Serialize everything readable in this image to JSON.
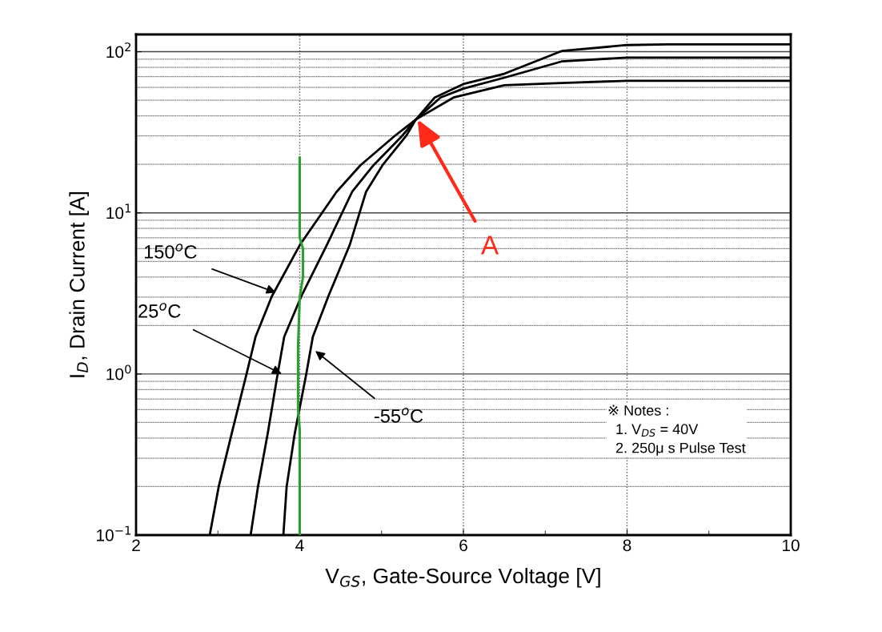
{
  "chart_data": {
    "type": "line",
    "xlabel": "V$_{GS}$, Gate-Source Voltage [V]",
    "ylabel": "I$_{D}$, Drain Current [A]",
    "log": "y",
    "grid": true,
    "legend": false,
    "marker": "none",
    "line_style": "solid",
    "xlim": [
      2,
      10
    ],
    "xticks": [
      2,
      4,
      6,
      8,
      10
    ],
    "ylim": [
      0.1,
      128
    ],
    "yticks": [
      {
        "value": 0.1,
        "label": "10$^{−1}$"
      },
      {
        "value": 1,
        "label": "10$^{0}$"
      },
      {
        "value": 10,
        "label": "10$^{1}$"
      },
      {
        "value": 100,
        "label": "10$^{2}$"
      }
    ],
    "series": [
      {
        "color": "#000000",
        "x": [
          2.9,
          3.01,
          3.17,
          3.35,
          3.46,
          3.66,
          4.0,
          4.45,
          4.74,
          5.16,
          5.42,
          5.88,
          6.5,
          7.2,
          8.0,
          10.0
        ],
        "values": [
          0.1,
          0.2,
          0.43,
          1.0,
          1.7,
          3.04,
          6.3,
          13.5,
          19.7,
          30,
          38,
          52,
          62,
          64,
          66,
          66
        ]
      },
      {
        "color": "#000000",
        "x": [
          3.4,
          3.49,
          3.61,
          3.73,
          3.81,
          4.02,
          4.33,
          4.64,
          4.9,
          5.25,
          5.42,
          5.72,
          6.0,
          6.5,
          7.2,
          8.0,
          10.0
        ],
        "values": [
          0.1,
          0.2,
          0.43,
          1.0,
          1.7,
          3.04,
          6.3,
          13.5,
          19.7,
          30,
          38,
          52,
          59,
          69,
          87,
          92,
          92
        ]
      },
      {
        "color": "#000000",
        "x": [
          3.8,
          3.84,
          3.94,
          4.08,
          4.16,
          4.35,
          4.61,
          4.81,
          5.01,
          5.3,
          5.42,
          5.65,
          6.0,
          6.5,
          7.2,
          8.0,
          8.5,
          10.0
        ],
        "values": [
          0.1,
          0.2,
          0.43,
          1.0,
          1.7,
          3.04,
          6.3,
          13.5,
          19.7,
          30,
          38,
          52,
          63,
          73,
          101,
          110,
          111,
          111
        ]
      },
      {
        "color": "#2ca02c",
        "x": [
          4.0,
          4.0,
          4.04,
          4.04,
          4.0,
          3.98,
          3.98,
          4.0,
          4.0
        ],
        "values": [
          22,
          7,
          6,
          4,
          3,
          1.5,
          0.6,
          0.45,
          0.1
        ]
      }
    ],
    "annotations": [
      {
        "text": "150$^{o}$C",
        "x": 3.71,
        "y": 3.2
      },
      {
        "text": "25$^{o}$C",
        "x": 3.78,
        "y": 1.0
      },
      {
        "text": "-55$^{o}$C",
        "x": 4.19,
        "y": 1.39
      },
      {
        "text": "A",
        "x": 5.44,
        "y": 38
      },
      "※ Notes :\n  1. V$_{DS}$ = 40V\n  2. 250μ s Pulse Test"
    ]
  }
}
